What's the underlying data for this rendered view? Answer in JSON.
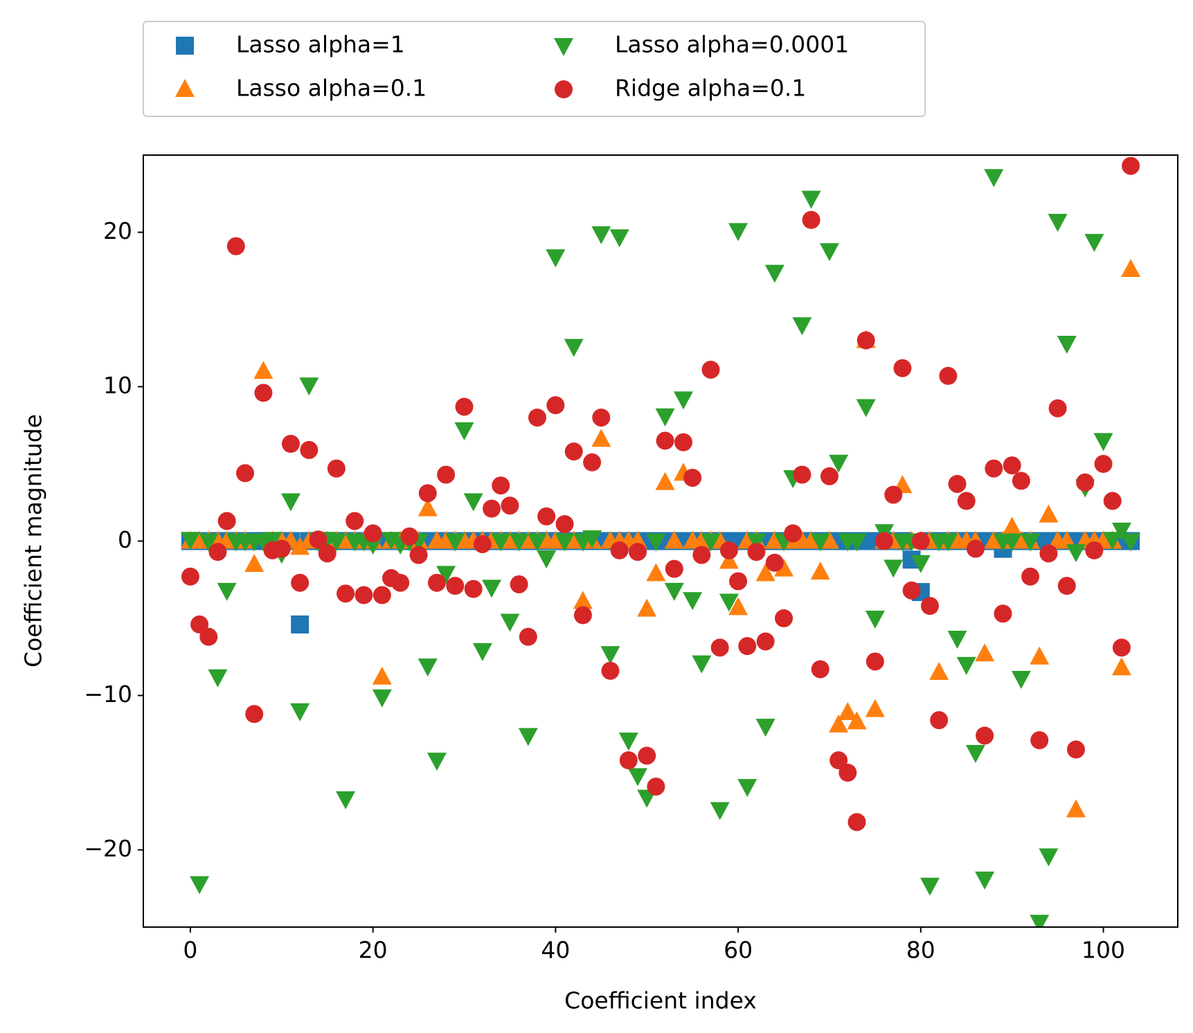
{
  "chart_data": {
    "type": "scatter",
    "xlabel": "Coefficient index",
    "ylabel": "Coefficient magnitude",
    "x": [
      0,
      1,
      2,
      3,
      4,
      5,
      6,
      7,
      8,
      9,
      10,
      11,
      12,
      13,
      14,
      15,
      16,
      17,
      18,
      19,
      20,
      21,
      22,
      23,
      24,
      25,
      26,
      27,
      28,
      29,
      30,
      31,
      32,
      33,
      34,
      35,
      36,
      37,
      38,
      39,
      40,
      41,
      42,
      43,
      44,
      45,
      46,
      47,
      48,
      49,
      50,
      51,
      52,
      53,
      54,
      55,
      56,
      57,
      58,
      59,
      60,
      61,
      62,
      63,
      64,
      65,
      66,
      67,
      68,
      69,
      70,
      71,
      72,
      73,
      74,
      75,
      76,
      77,
      78,
      79,
      80,
      81,
      82,
      83,
      84,
      85,
      86,
      87,
      88,
      89,
      90,
      91,
      92,
      93,
      94,
      95,
      96,
      97,
      98,
      99,
      100,
      101,
      102,
      103
    ],
    "series": [
      {
        "name": "Lasso alpha=1",
        "color": "#1f77b4",
        "marker": "square",
        "values": [
          0,
          0,
          0,
          0,
          0,
          0,
          0,
          0,
          0,
          0,
          0,
          0,
          -5.4,
          0,
          0,
          0,
          0,
          0,
          0,
          0,
          0,
          0,
          0,
          0,
          0,
          0,
          0,
          0,
          0,
          0,
          0,
          0,
          0,
          0,
          0,
          0,
          0,
          0,
          0,
          0,
          0,
          0,
          0,
          0,
          0,
          0,
          0,
          0,
          0,
          0,
          0,
          0,
          0,
          0,
          0,
          0,
          0,
          0,
          0,
          0,
          0,
          0,
          0,
          0,
          0,
          0,
          0,
          0,
          0,
          0,
          0,
          0,
          0,
          0,
          0,
          0,
          0,
          0,
          0,
          -1.2,
          -3.3,
          0,
          0,
          0,
          0,
          0,
          0,
          0,
          0,
          -0.5,
          0,
          0,
          0,
          0,
          0,
          0,
          0,
          0,
          0,
          0,
          0,
          0,
          0,
          0
        ]
      },
      {
        "name": "Lasso alpha=0.1",
        "color": "#ff7f0e",
        "marker": "triangle-up",
        "values": [
          0,
          0,
          0,
          0,
          0,
          0,
          0,
          -1.5,
          11.0,
          0,
          0,
          0,
          -0.4,
          0,
          0,
          0,
          0,
          0,
          0,
          0,
          0,
          -8.8,
          0,
          0,
          0,
          0,
          2.1,
          0,
          0,
          0,
          0,
          0,
          0,
          0,
          0,
          0,
          0,
          0,
          0,
          0,
          0,
          0,
          0,
          -3.9,
          0,
          6.6,
          0,
          0,
          0,
          0,
          -4.4,
          -2.1,
          3.8,
          0,
          4.4,
          0,
          0,
          0,
          0,
          -1.3,
          -4.3,
          0,
          0,
          -2.1,
          0,
          -1.8,
          0,
          0,
          0,
          -2.0,
          0,
          -11.9,
          -11.1,
          -11.7,
          13.0,
          -10.9,
          0,
          0,
          3.6,
          0,
          0,
          0,
          -8.5,
          0,
          0,
          0,
          0,
          -7.3,
          0,
          0,
          0.9,
          0,
          0,
          -7.5,
          1.7,
          0,
          0,
          -17.4,
          0,
          0,
          0,
          0,
          -8.2,
          17.6
        ]
      },
      {
        "name": "Lasso alpha=0.0001",
        "color": "#2ca02c",
        "marker": "triangle-down",
        "values": [
          0.1,
          -22.2,
          0,
          -8.8,
          -3.2,
          0,
          0,
          0,
          0,
          0.1,
          -0.8,
          2.6,
          -11.0,
          10.1,
          0,
          0.1,
          0,
          -16.7,
          0,
          0,
          -0.2,
          -10.1,
          0.1,
          -0.2,
          0,
          0,
          -8.1,
          -14.2,
          -2.1,
          0,
          7.2,
          2.6,
          -7.1,
          -3.0,
          0,
          -5.2,
          0,
          -12.6,
          0,
          -1.1,
          18.4,
          0,
          12.6,
          0,
          0.2,
          19.9,
          -7.3,
          19.7,
          -12.9,
          -15.2,
          -16.6,
          0,
          8.1,
          -3.2,
          9.2,
          -3.8,
          -7.9,
          0,
          -17.4,
          -3.9,
          20.1,
          -15.9,
          0,
          -12.0,
          17.4,
          0,
          4.1,
          14.0,
          22.2,
          0,
          18.8,
          5.1,
          0,
          0,
          8.7,
          -5.0,
          0.6,
          -1.7,
          0,
          0,
          -1.4,
          -22.3,
          0,
          0,
          -6.3,
          -8.0,
          -13.7,
          -21.9,
          23.6,
          0,
          0,
          -8.9,
          0,
          -24.7,
          -20.4,
          20.7,
          12.8,
          -0.7,
          3.5,
          19.4,
          6.5,
          0.1,
          0.7,
          0
        ]
      },
      {
        "name": "Ridge alpha=0.1",
        "color": "#d62728",
        "marker": "circle",
        "values": [
          -2.3,
          -5.4,
          -6.2,
          -0.7,
          1.3,
          19.1,
          4.4,
          -11.2,
          9.6,
          -0.6,
          -0.5,
          6.3,
          -2.7,
          5.9,
          0.1,
          -0.8,
          4.7,
          -3.4,
          1.3,
          -3.5,
          0.5,
          -3.5,
          -2.4,
          -2.7,
          0.3,
          -0.9,
          3.1,
          -2.7,
          4.3,
          -2.9,
          8.7,
          -3.1,
          -0.2,
          2.1,
          3.6,
          2.3,
          -2.8,
          -6.2,
          8.0,
          1.6,
          8.8,
          1.1,
          5.8,
          -4.8,
          5.1,
          8.0,
          -8.4,
          -0.6,
          -14.2,
          -0.7,
          -13.9,
          -15.9,
          6.5,
          -1.8,
          6.4,
          4.1,
          -0.9,
          11.1,
          -6.9,
          -0.6,
          -2.6,
          -6.8,
          -0.7,
          -6.5,
          -1.4,
          -5.0,
          0.5,
          4.3,
          20.8,
          -8.3,
          4.2,
          -14.2,
          -15.0,
          -18.2,
          13.0,
          -7.8,
          0.0,
          3.0,
          11.2,
          -3.2,
          0.0,
          -4.2,
          -11.6,
          10.7,
          3.7,
          2.6,
          -0.5,
          -12.6,
          4.7,
          -4.7,
          4.9,
          3.9,
          -2.3,
          -12.9,
          -0.8,
          8.6,
          -2.9,
          -13.5,
          3.8,
          -0.6,
          5.0,
          2.6,
          -6.9,
          24.3
        ]
      }
    ],
    "xlim": [
      -5.15,
      108.15
    ],
    "ylim": [
      -25,
      25
    ],
    "xticks": [
      0,
      20,
      40,
      60,
      80,
      100
    ],
    "yticks": [
      {
        "value": -20,
        "label": "−20"
      },
      {
        "value": -10,
        "label": "−10"
      },
      0,
      10,
      20
    ],
    "legend": "above",
    "legend_columns": 2,
    "grid": false
  }
}
